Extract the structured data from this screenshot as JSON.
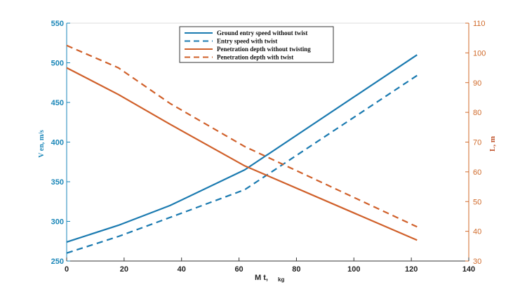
{
  "chart_data": {
    "type": "line",
    "x_axis": {
      "label": "M t,",
      "unit": "kg",
      "range": [
        0,
        140
      ],
      "ticks": [
        "0",
        "20",
        "40",
        "60",
        "80",
        "100",
        "120",
        "140"
      ]
    },
    "y_axis_left": {
      "label": "V en, m/s",
      "range": [
        250,
        550
      ],
      "ticks": [
        "250",
        "300",
        "350",
        "400",
        "450",
        "500",
        "550"
      ]
    },
    "y_axis_right": {
      "label": "L, m",
      "range": [
        30,
        110
      ],
      "ticks": [
        "30",
        "40",
        "50",
        "60",
        "70",
        "80",
        "90",
        "100",
        "110"
      ]
    },
    "legend_position": "top-center",
    "series": [
      {
        "name": "Ground entry speed without twist",
        "axis": "left",
        "color": "#1a7ab0",
        "style": "solid",
        "points": [
          [
            0,
            274
          ],
          [
            18,
            295
          ],
          [
            36,
            320
          ],
          [
            62,
            365
          ],
          [
            122,
            510
          ]
        ]
      },
      {
        "name": "Entry speed with twist",
        "axis": "left",
        "color": "#1a7ab0",
        "style": "dashed",
        "points": [
          [
            0,
            260
          ],
          [
            18,
            281
          ],
          [
            36,
            305
          ],
          [
            62,
            340
          ],
          [
            122,
            484
          ]
        ]
      },
      {
        "name": "Penetration depth without twisting",
        "axis": "right",
        "color": "#d0602a",
        "style": "solid",
        "points": [
          [
            0,
            95
          ],
          [
            18,
            86
          ],
          [
            36,
            76
          ],
          [
            62,
            62
          ],
          [
            122,
            37
          ]
        ]
      },
      {
        "name": "Penetration depth with twist",
        "axis": "right",
        "color": "#d0602a",
        "style": "dashed",
        "points": [
          [
            0,
            102.5
          ],
          [
            18,
            95
          ],
          [
            36,
            83
          ],
          [
            62,
            68.5
          ],
          [
            122,
            41.5
          ]
        ]
      }
    ]
  }
}
